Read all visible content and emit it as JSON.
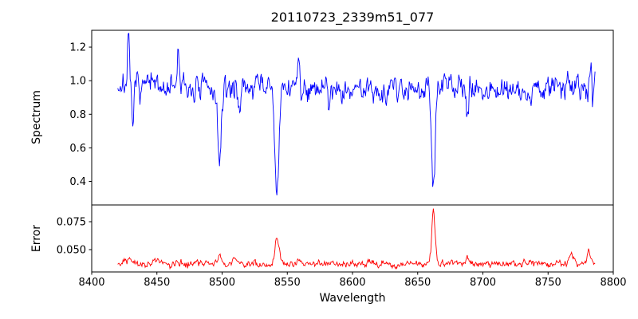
{
  "figure": {
    "background": "#ffffff"
  },
  "chart_data": {
    "type": "line",
    "title": "20110723_2339m51_077",
    "xlabel": "Wavelength",
    "legend": "none",
    "grid": false,
    "x_range": [
      8400,
      8800
    ],
    "x_data_range": [
      8420,
      8786
    ],
    "x_ticks": [
      8400,
      8450,
      8500,
      8550,
      8600,
      8650,
      8700,
      8750,
      8800
    ],
    "x_tick_labels": [
      "8400",
      "8450",
      "8500",
      "8550",
      "8600",
      "8650",
      "8700",
      "8750",
      "8800"
    ],
    "sampling_step": 0.5,
    "seed": 7,
    "panels": [
      {
        "name": "spectrum",
        "ylabel": "Spectrum",
        "color": "#0000ff",
        "ylim": [
          0.26,
          1.3
        ],
        "y_ticks": [
          0.4,
          0.6,
          0.8,
          1.0,
          1.2
        ],
        "y_tick_labels": [
          "0.4",
          "0.6",
          "0.8",
          "1.0",
          "1.2"
        ],
        "continuum_level": 0.96,
        "noise_sigma": 0.035,
        "absorption_lines": [
          {
            "center": 8431.5,
            "depth": 0.24,
            "width": 0.9
          },
          {
            "center": 8498.0,
            "depth": 0.46,
            "width": 1.3
          },
          {
            "center": 8514.0,
            "depth": 0.13,
            "width": 0.8
          },
          {
            "center": 8542.1,
            "depth": 0.66,
            "width": 1.6
          },
          {
            "center": 8582.0,
            "depth": 0.1,
            "width": 0.8
          },
          {
            "center": 8662.1,
            "depth": 0.6,
            "width": 1.4
          },
          {
            "center": 8688.0,
            "depth": 0.25,
            "width": 1.0
          },
          {
            "center": 8734.0,
            "depth": 0.09,
            "width": 0.8
          }
        ],
        "emission_spikes": [
          {
            "center": 8428.0,
            "amp": 0.28,
            "width": 0.7
          },
          {
            "center": 8466.5,
            "amp": 0.25,
            "width": 0.7
          },
          {
            "center": 8559.0,
            "amp": 0.16,
            "width": 0.6
          },
          {
            "center": 8783.0,
            "amp": 0.2,
            "width": 0.6
          }
        ]
      },
      {
        "name": "error",
        "ylabel": "Error",
        "color": "#ff0000",
        "ylim": [
          0.03,
          0.09
        ],
        "y_ticks": [
          0.05,
          0.075
        ],
        "y_tick_labels": [
          "0.050",
          "0.075"
        ],
        "baseline_level": 0.037,
        "noise_sigma": 0.0014,
        "peaks": [
          {
            "center": 8429.0,
            "amp": 0.006,
            "width": 1.5
          },
          {
            "center": 8450.0,
            "amp": 0.003,
            "width": 2.0
          },
          {
            "center": 8498.0,
            "amp": 0.009,
            "width": 1.5
          },
          {
            "center": 8510.0,
            "amp": 0.003,
            "width": 1.5
          },
          {
            "center": 8542.1,
            "amp": 0.022,
            "width": 1.6
          },
          {
            "center": 8662.1,
            "amp": 0.046,
            "width": 1.3
          },
          {
            "center": 8688.0,
            "amp": 0.004,
            "width": 1.5
          },
          {
            "center": 8768.0,
            "amp": 0.007,
            "width": 2.0
          },
          {
            "center": 8781.0,
            "amp": 0.01,
            "width": 1.3
          }
        ]
      }
    ]
  }
}
